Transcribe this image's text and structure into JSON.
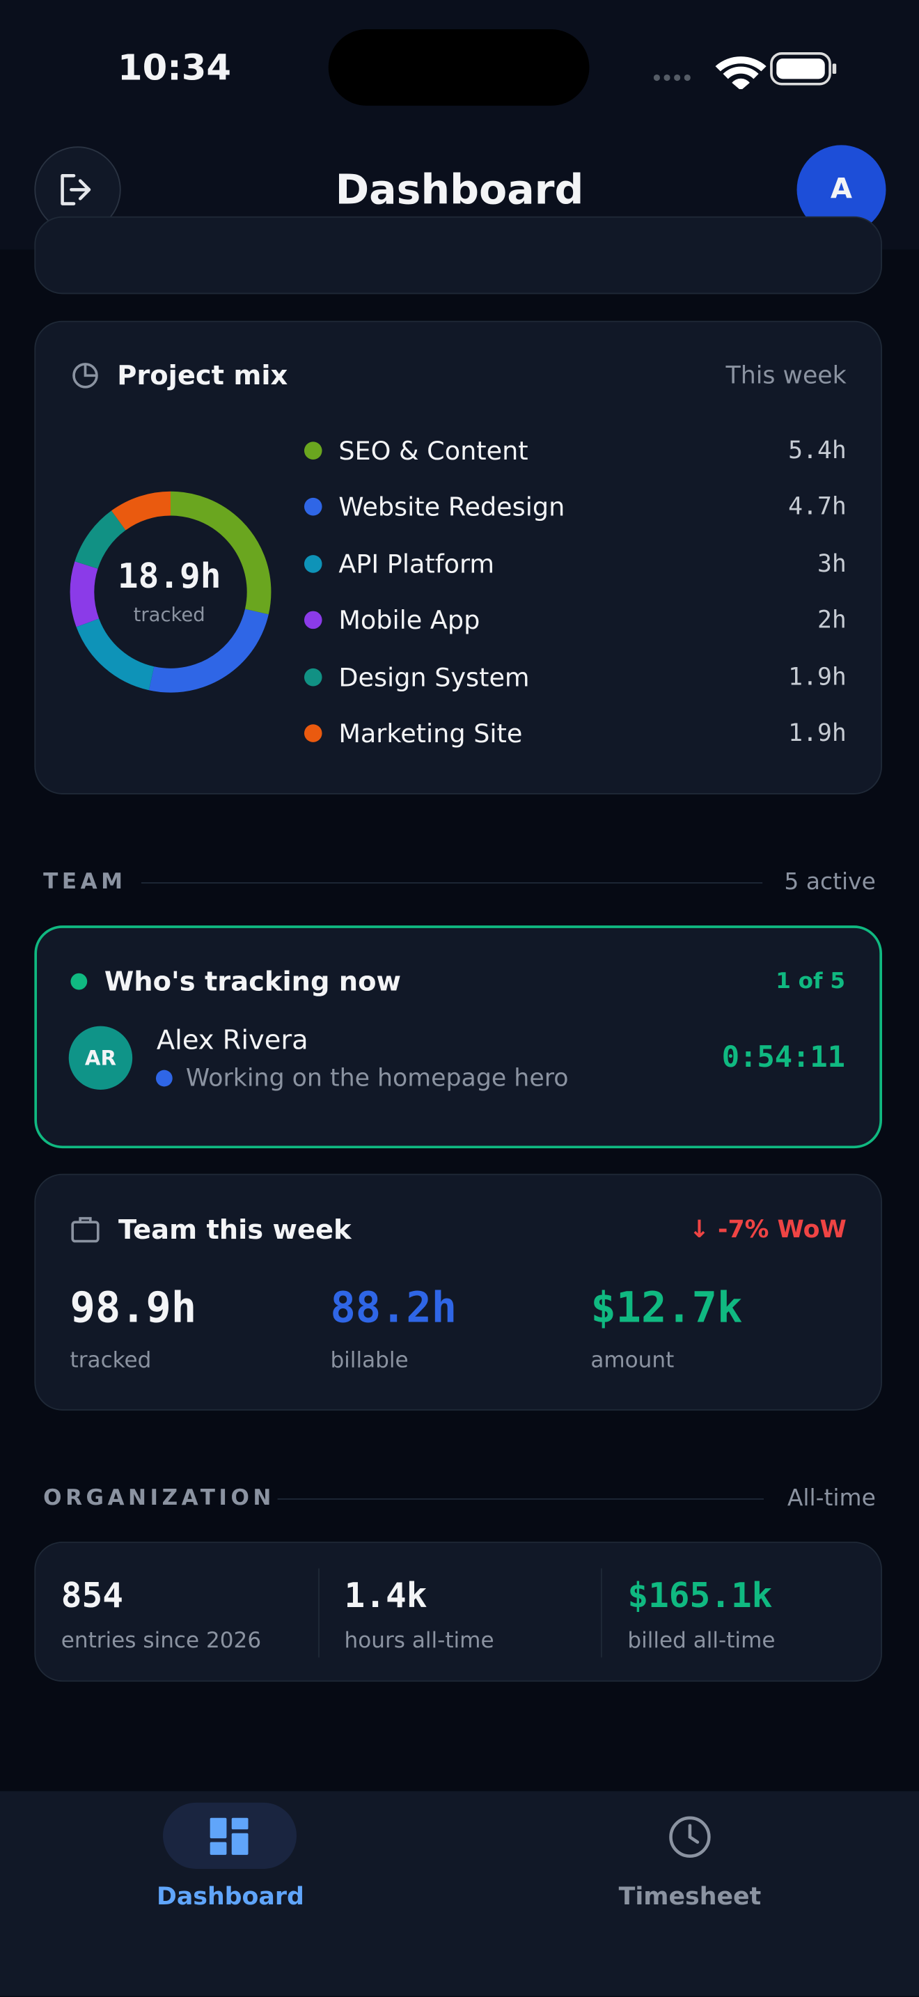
{
  "status_bar": {
    "time": "10:34"
  },
  "header": {
    "title": "Dashboard",
    "avatar": "A"
  },
  "project_mix": {
    "title": "Project mix",
    "period": "This week",
    "total": "18.9h",
    "total_caption": "tracked",
    "items": [
      {
        "name": "SEO & Content",
        "color": "#6aa61f",
        "hours": 5.4,
        "hours_label": "5.4h"
      },
      {
        "name": "Website Redesign",
        "color": "#2f66e6",
        "hours": 4.7,
        "hours_label": "4.7h"
      },
      {
        "name": "API Platform",
        "color": "#0e93b8",
        "hours": 3,
        "hours_label": "3h"
      },
      {
        "name": "Mobile App",
        "color": "#8b3be8",
        "hours": 2,
        "hours_label": "2h"
      },
      {
        "name": "Design System",
        "color": "#119184",
        "hours": 1.9,
        "hours_label": "1.9h"
      },
      {
        "name": "Marketing Site",
        "color": "#ea5a0f",
        "hours": 1.9,
        "hours_label": "1.9h"
      }
    ]
  },
  "team": {
    "section_title": "TEAM",
    "active": "5 active",
    "tracking": {
      "title": "Who's tracking now",
      "count": "1 of 5",
      "initials": "AR",
      "name": "Alex Rivera",
      "activity": "Working on the homepage hero",
      "timer": "0:54:11"
    },
    "week": {
      "title": "Team this week",
      "change": "↓ -7% WoW",
      "stats": [
        {
          "value": "98.9h",
          "label": "tracked",
          "color": "#f3f4f6"
        },
        {
          "value": "88.2h",
          "label": "billable",
          "color": "#2f66e6"
        },
        {
          "value": "$12.7k",
          "label": "amount",
          "color": "#10b981"
        }
      ]
    }
  },
  "organization": {
    "section_title": "ORGANIZATION",
    "period": "All-time",
    "stats": [
      {
        "value": "854",
        "label": "entries since 2026",
        "color": "#f3f4f6"
      },
      {
        "value": "1.4k",
        "label": "hours all-time",
        "color": "#f3f4f6"
      },
      {
        "value": "$165.1k",
        "label": "billed all-time",
        "color": "#10b981"
      }
    ]
  },
  "nav": [
    {
      "label": "Dashboard"
    },
    {
      "label": "Timesheet"
    }
  ]
}
